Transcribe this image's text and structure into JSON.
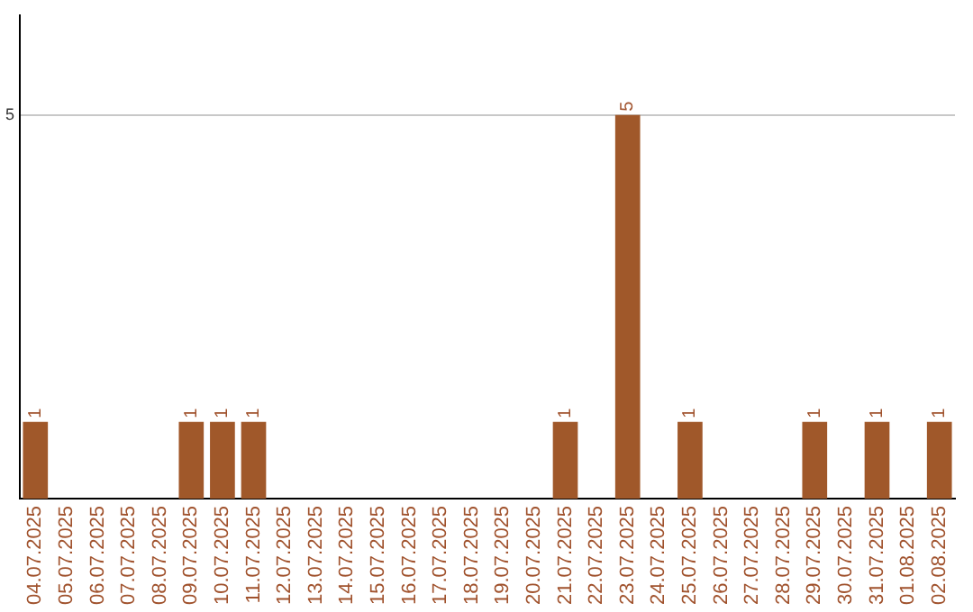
{
  "chart_data": {
    "type": "bar",
    "categories": [
      "04.07.2025",
      "05.07.2025",
      "06.07.2025",
      "07.07.2025",
      "08.07.2025",
      "09.07.2025",
      "10.07.2025",
      "11.07.2025",
      "12.07.2025",
      "13.07.2025",
      "14.07.2025",
      "15.07.2025",
      "16.07.2025",
      "17.07.2025",
      "18.07.2025",
      "19.07.2025",
      "20.07.2025",
      "21.07.2025",
      "22.07.2025",
      "23.07.2025",
      "24.07.2025",
      "25.07.2025",
      "26.07.2025",
      "27.07.2025",
      "28.07.2025",
      "29.07.2025",
      "30.07.2025",
      "31.07.2025",
      "01.08.2025",
      "02.08.2025"
    ],
    "values": [
      1,
      null,
      null,
      null,
      null,
      1,
      1,
      1,
      null,
      null,
      null,
      null,
      null,
      null,
      null,
      null,
      null,
      1,
      null,
      5,
      null,
      1,
      null,
      null,
      null,
      1,
      null,
      1,
      null,
      1
    ],
    "color": "#a0582a",
    "ylim": [
      0,
      6.3
    ],
    "yticks": [
      5
    ],
    "grid": "y",
    "legend": false,
    "data_labels": true
  }
}
